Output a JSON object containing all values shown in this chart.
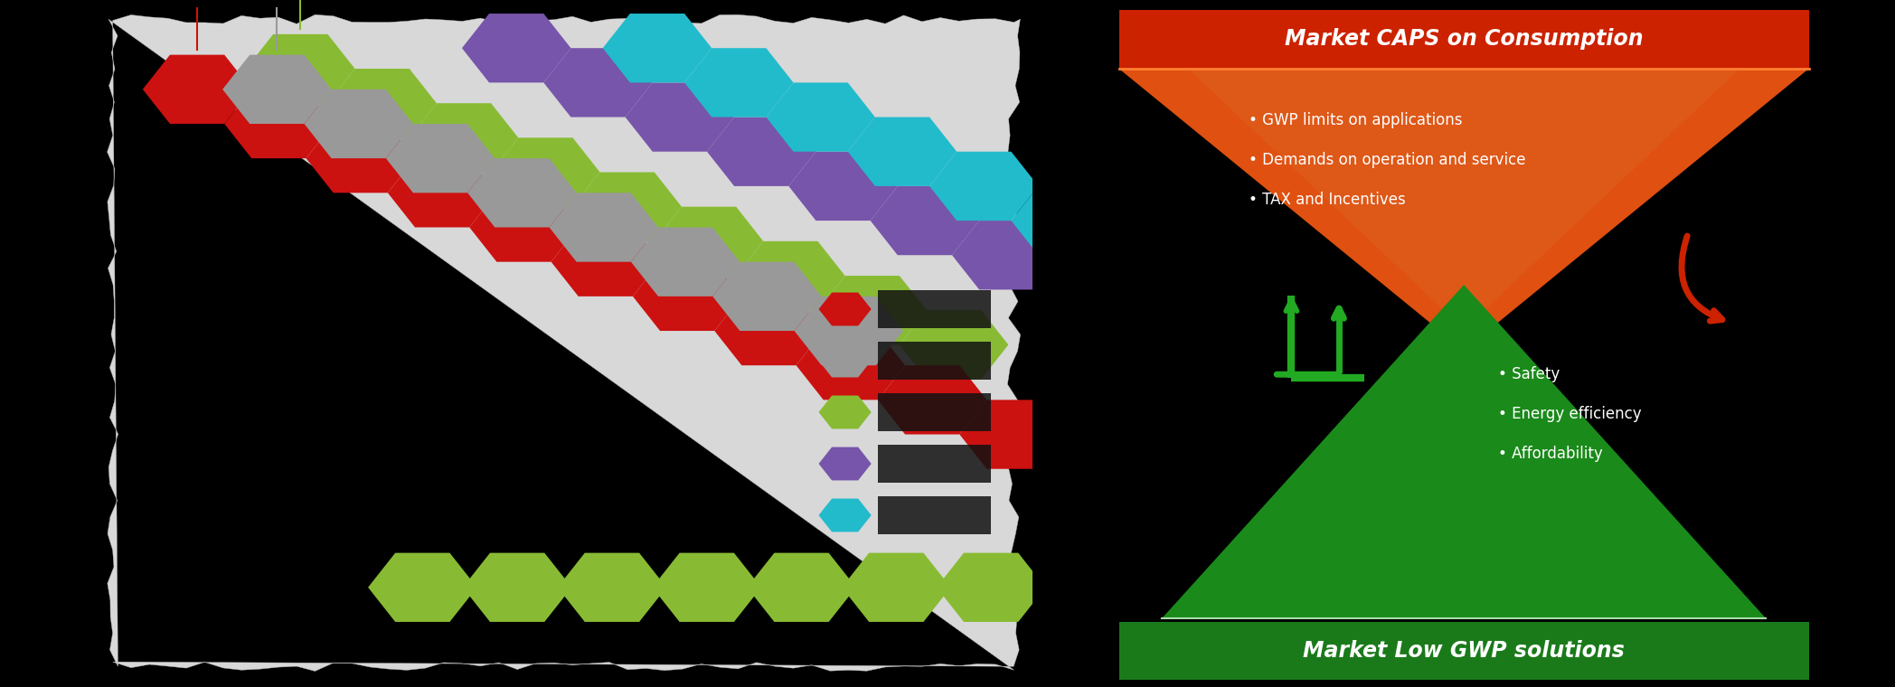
{
  "fig_bg": "#000000",
  "left_paper_color": "#d8d8d8",
  "chain_colors": {
    "red": "#cc1111",
    "gray": "#999999",
    "green": "#88bb33",
    "purple": "#7755aa",
    "cyan": "#22bbcc"
  },
  "right_bg": "#ffffff",
  "top_bar_color": "#cc2200",
  "top_bar_text": "Market CAPS on Consumption",
  "top_tri_color": "#e05010",
  "top_bullets": [
    "• GWP limits on applications",
    "• Demands on operation and service",
    "• TAX and Incentives"
  ],
  "bot_bar_color": "#1a7a1a",
  "bot_bar_text": "Market Low GWP solutions",
  "bot_tri_dark": "#1a8a1a",
  "bot_tri_light": "#88cc44",
  "bot_bullets": [
    "• Safety",
    "• Energy efficiency",
    "• Affordability"
  ],
  "arrow_green": "#22aa22",
  "arrow_red": "#cc2200",
  "legend_colors": [
    "#cc1111",
    "#999999",
    "#88bb33",
    "#7755aa",
    "#22bbcc"
  ]
}
